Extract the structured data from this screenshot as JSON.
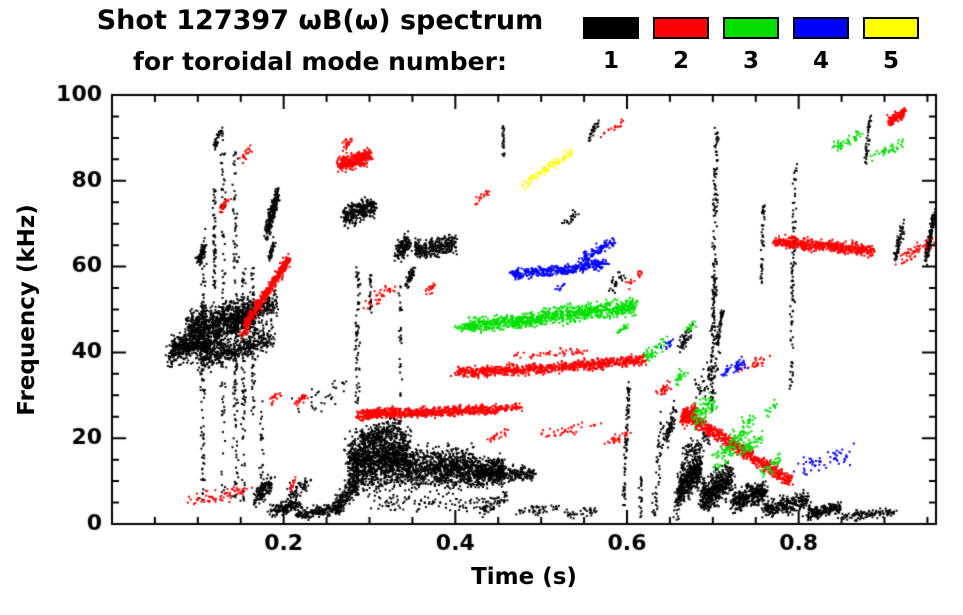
{
  "chart_data": {
    "type": "scatter",
    "title": "Shot 127397 ωB(ω) spectrum",
    "subtitle": "for toroidal mode number:",
    "xlabel": "Time (s)",
    "ylabel": "Frequency (kHz)",
    "xlim": [
      0.0,
      0.96
    ],
    "ylim": [
      0,
      100
    ],
    "xticks": [
      0.2,
      0.4,
      0.6,
      0.8
    ],
    "xtick_labels": [
      "0.2",
      "0.4",
      "0.6",
      "0.8"
    ],
    "yticks": [
      0,
      20,
      40,
      60,
      80,
      100
    ],
    "x_minor_step": 0.05,
    "y_minor_step": 5,
    "grid": false,
    "legend_position": "top-right",
    "point_size": 2,
    "seed": 42,
    "legend": [
      {
        "label": "1",
        "color": "#000000"
      },
      {
        "label": "2",
        "color": "#ff0000"
      },
      {
        "label": "3",
        "color": "#00e000"
      },
      {
        "label": "4",
        "color": "#0000ff"
      },
      {
        "label": "5",
        "color": "#ffff00"
      }
    ],
    "segment_columns": [
      "t_start",
      "t_end",
      "f_start_kHz",
      "f_end_kHz",
      "f_spread",
      "t_jitter",
      "n_points"
    ],
    "series": [
      {
        "name": "n=1",
        "color": "#000000",
        "segments": [
          [
            0.065,
            0.125,
            40,
            44,
            3.5,
            0.004,
            450
          ],
          [
            0.085,
            0.165,
            46,
            50,
            3.5,
            0.004,
            650
          ],
          [
            0.1,
            0.185,
            38,
            44,
            3,
            0.004,
            450
          ],
          [
            0.12,
            0.19,
            44,
            52,
            3,
            0.004,
            350
          ],
          [
            0.068,
            0.1,
            41,
            43,
            2,
            0.003,
            150
          ],
          [
            0.105,
            0.105,
            5,
            68,
            1,
            0.003,
            110
          ],
          [
            0.118,
            0.118,
            55,
            78,
            1,
            0.002,
            55
          ],
          [
            0.128,
            0.128,
            8,
            92,
            1,
            0.003,
            85
          ],
          [
            0.143,
            0.143,
            4,
            88,
            1,
            0.003,
            120
          ],
          [
            0.152,
            0.152,
            4,
            60,
            1,
            0.003,
            85
          ],
          [
            0.163,
            0.163,
            25,
            60,
            1,
            0.002,
            55
          ],
          [
            0.173,
            0.173,
            5,
            30,
            1,
            0.002,
            35
          ],
          [
            0.098,
            0.108,
            61,
            65,
            1.5,
            0.003,
            55
          ],
          [
            0.118,
            0.126,
            88,
            92,
            1.2,
            0.002,
            35
          ],
          [
            0.178,
            0.192,
            68,
            77,
            2.3,
            0.003,
            240
          ],
          [
            0.182,
            0.188,
            62,
            66,
            1.5,
            0.002,
            35
          ],
          [
            0.165,
            0.185,
            6,
            10,
            2,
            0.004,
            110
          ],
          [
            0.185,
            0.215,
            3,
            5,
            1.5,
            0.005,
            150
          ],
          [
            0.215,
            0.265,
            2.5,
            4,
            1.2,
            0.006,
            200
          ],
          [
            0.205,
            0.228,
            7,
            10,
            1.8,
            0.004,
            60
          ],
          [
            0.26,
            0.285,
            4,
            10,
            2.5,
            0.004,
            180
          ],
          [
            0.275,
            0.345,
            14,
            16,
            6,
            0.006,
            1300
          ],
          [
            0.29,
            0.335,
            20,
            23,
            2.5,
            0.004,
            220
          ],
          [
            0.34,
            0.42,
            13,
            13.5,
            4.5,
            0.006,
            850
          ],
          [
            0.42,
            0.455,
            12,
            12.5,
            3,
            0.005,
            420
          ],
          [
            0.455,
            0.49,
            12,
            12,
            1.6,
            0.004,
            130
          ],
          [
            0.3,
            0.45,
            5,
            5,
            2,
            0.012,
            110
          ],
          [
            0.268,
            0.305,
            72,
            74,
            2.4,
            0.003,
            280
          ],
          [
            0.33,
            0.345,
            63,
            66,
            2.2,
            0.003,
            140
          ],
          [
            0.35,
            0.4,
            64,
            65.5,
            2.2,
            0.004,
            280
          ],
          [
            0.342,
            0.352,
            56,
            60,
            1.5,
            0.002,
            45
          ],
          [
            0.285,
            0.285,
            28,
            60,
            1,
            0.003,
            65
          ],
          [
            0.3,
            0.3,
            50,
            58,
            1,
            0.002,
            28
          ],
          [
            0.335,
            0.335,
            30,
            55,
            1,
            0.002,
            28
          ],
          [
            0.22,
            0.27,
            27,
            33,
            3,
            0.018,
            35
          ],
          [
            0.43,
            0.46,
            3,
            7,
            1.5,
            0.004,
            55
          ],
          [
            0.455,
            0.455,
            86,
            93,
            1,
            0.002,
            22
          ],
          [
            0.47,
            0.52,
            3,
            4,
            1,
            0.01,
            45
          ],
          [
            0.53,
            0.565,
            2.5,
            3.5,
            1,
            0.008,
            35
          ],
          [
            0.525,
            0.54,
            70,
            73,
            1,
            0.004,
            22
          ],
          [
            0.555,
            0.565,
            90,
            94,
            1,
            0.003,
            26
          ],
          [
            0.58,
            0.595,
            55,
            58,
            1.5,
            0.005,
            26
          ],
          [
            0.595,
            0.601,
            3,
            33,
            1.2,
            0.002,
            85
          ],
          [
            0.615,
            0.615,
            2,
            12,
            1,
            0.002,
            22
          ],
          [
            0.63,
            0.64,
            2,
            25,
            1.5,
            0.004,
            55
          ],
          [
            0.645,
            0.655,
            20,
            27,
            2,
            0.003,
            65
          ],
          [
            0.655,
            0.665,
            2,
            14,
            2,
            0.003,
            55
          ],
          [
            0.66,
            0.685,
            8,
            14,
            4,
            0.004,
            420
          ],
          [
            0.685,
            0.72,
            6,
            11,
            3.5,
            0.005,
            470
          ],
          [
            0.72,
            0.76,
            5,
            8,
            2.5,
            0.005,
            330
          ],
          [
            0.76,
            0.81,
            3.5,
            6,
            2,
            0.006,
            280
          ],
          [
            0.81,
            0.85,
            2.5,
            4,
            1.5,
            0.006,
            190
          ],
          [
            0.85,
            0.91,
            2,
            3,
            1,
            0.008,
            110
          ],
          [
            0.665,
            0.695,
            17,
            20,
            2,
            0.005,
            75
          ],
          [
            0.68,
            0.705,
            30,
            38,
            3,
            0.006,
            55
          ],
          [
            0.66,
            0.675,
            41,
            46,
            2,
            0.004,
            45
          ],
          [
            0.698,
            0.703,
            28,
            92,
            1.5,
            0.003,
            190
          ],
          [
            0.703,
            0.71,
            42,
            50,
            1.5,
            0.002,
            55
          ],
          [
            0.755,
            0.758,
            56,
            76,
            1,
            0.002,
            45
          ],
          [
            0.79,
            0.795,
            32,
            84,
            1.2,
            0.003,
            100
          ],
          [
            0.876,
            0.882,
            84,
            95,
            1,
            0.002,
            40
          ],
          [
            0.912,
            0.92,
            62,
            70,
            1.5,
            0.003,
            55
          ],
          [
            0.947,
            0.957,
            62,
            72,
            1.8,
            0.002,
            140
          ]
        ]
      },
      {
        "name": "n=2",
        "color": "#ff0000",
        "segments": [
          [
            0.155,
            0.205,
            47,
            62,
            1.3,
            0.003,
            420
          ],
          [
            0.148,
            0.158,
            44,
            46,
            1,
            0.002,
            28
          ],
          [
            0.263,
            0.3,
            84,
            86,
            1.8,
            0.003,
            300
          ],
          [
            0.268,
            0.278,
            88,
            90,
            1,
            0.002,
            26
          ],
          [
            0.285,
            0.33,
            25.5,
            26.5,
            1.2,
            0.004,
            280
          ],
          [
            0.33,
            0.45,
            26,
            27,
            1.1,
            0.005,
            520
          ],
          [
            0.45,
            0.475,
            27,
            27.5,
            0.8,
            0.004,
            55
          ],
          [
            0.4,
            0.5,
            35.5,
            36.5,
            1.2,
            0.005,
            400
          ],
          [
            0.5,
            0.62,
            36.5,
            38.5,
            1.2,
            0.005,
            480
          ],
          [
            0.47,
            0.55,
            39.5,
            40.5,
            0.8,
            0.009,
            50
          ],
          [
            0.662,
            0.68,
            24.5,
            27,
            2,
            0.003,
            140
          ],
          [
            0.665,
            0.79,
            26,
            10,
            1.5,
            0.004,
            650
          ],
          [
            0.77,
            0.885,
            66,
            64,
            1.4,
            0.004,
            560
          ],
          [
            0.905,
            0.922,
            94,
            96.5,
            1.2,
            0.003,
            110
          ],
          [
            0.095,
            0.155,
            6,
            8,
            1.5,
            0.012,
            65
          ],
          [
            0.125,
            0.135,
            73,
            76,
            1,
            0.003,
            26
          ],
          [
            0.15,
            0.16,
            85,
            88,
            1,
            0.003,
            18
          ],
          [
            0.185,
            0.195,
            29,
            31,
            1,
            0.003,
            18
          ],
          [
            0.21,
            0.225,
            28,
            30,
            1,
            0.004,
            22
          ],
          [
            0.295,
            0.325,
            51,
            55,
            1.5,
            0.006,
            36
          ],
          [
            0.36,
            0.375,
            54,
            56,
            1,
            0.004,
            18
          ],
          [
            0.42,
            0.44,
            75,
            78,
            1,
            0.004,
            18
          ],
          [
            0.44,
            0.46,
            20,
            22,
            1,
            0.005,
            22
          ],
          [
            0.5,
            0.56,
            21,
            23,
            1,
            0.012,
            36
          ],
          [
            0.575,
            0.6,
            19,
            21,
            1,
            0.006,
            26
          ],
          [
            0.57,
            0.595,
            91,
            94,
            1,
            0.006,
            18
          ],
          [
            0.6,
            0.615,
            56,
            59,
            1,
            0.005,
            18
          ],
          [
            0.635,
            0.648,
            30,
            33,
            1.2,
            0.004,
            26
          ],
          [
            0.73,
            0.76,
            36,
            39,
            1.2,
            0.006,
            26
          ],
          [
            0.915,
            0.95,
            61,
            66,
            1.5,
            0.008,
            55
          ],
          [
            0.205,
            0.212,
            8,
            10,
            1,
            0.002,
            14
          ]
        ]
      },
      {
        "name": "n=3",
        "color": "#00e000",
        "segments": [
          [
            0.415,
            0.5,
            46.5,
            48,
            1.6,
            0.004,
            420
          ],
          [
            0.5,
            0.61,
            48.5,
            51,
            1.9,
            0.004,
            560
          ],
          [
            0.4,
            0.417,
            46,
            46.5,
            0.8,
            0.003,
            36
          ],
          [
            0.675,
            0.7,
            24,
            29,
            2.5,
            0.005,
            85
          ],
          [
            0.7,
            0.745,
            14,
            24,
            3,
            0.005,
            120
          ],
          [
            0.73,
            0.755,
            17,
            20,
            1.5,
            0.004,
            55
          ],
          [
            0.755,
            0.775,
            12,
            15,
            1.5,
            0.004,
            36
          ],
          [
            0.62,
            0.648,
            39,
            43,
            1.5,
            0.006,
            45
          ],
          [
            0.84,
            0.87,
            88,
            91,
            1.2,
            0.006,
            45
          ],
          [
            0.888,
            0.92,
            86,
            89,
            1.2,
            0.006,
            40
          ],
          [
            0.585,
            0.6,
            45,
            46,
            0.8,
            0.004,
            18
          ],
          [
            0.655,
            0.668,
            33,
            36,
            1.2,
            0.004,
            22
          ],
          [
            0.665,
            0.678,
            45,
            47,
            1,
            0.003,
            14
          ],
          [
            0.76,
            0.772,
            26,
            28,
            1,
            0.003,
            14
          ]
        ]
      },
      {
        "name": "n=4",
        "color": "#0000ff",
        "segments": [
          [
            0.465,
            0.525,
            58.5,
            59.5,
            1.2,
            0.004,
            200
          ],
          [
            0.525,
            0.575,
            59.5,
            61,
            1.2,
            0.004,
            170
          ],
          [
            0.545,
            0.585,
            62,
            66,
            1.2,
            0.004,
            100
          ],
          [
            0.71,
            0.735,
            35,
            38,
            1.5,
            0.005,
            55
          ],
          [
            0.8,
            0.86,
            13,
            17,
            1.8,
            0.012,
            55
          ],
          [
            0.64,
            0.652,
            41,
            43,
            1,
            0.003,
            14
          ],
          [
            0.515,
            0.525,
            55,
            56,
            0.8,
            0.003,
            10
          ]
        ]
      },
      {
        "name": "n=5",
        "color": "#ffff00",
        "segments": [
          [
            0.487,
            0.512,
            81,
            84,
            1,
            0.004,
            42
          ],
          [
            0.512,
            0.534,
            84,
            87,
            1,
            0.003,
            38
          ],
          [
            0.478,
            0.488,
            79,
            80.5,
            0.8,
            0.003,
            12
          ]
        ]
      }
    ]
  }
}
